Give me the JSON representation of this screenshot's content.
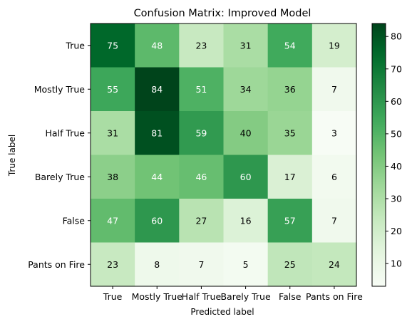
{
  "chart_data": {
    "type": "heatmap",
    "title": "Confusion Matrix: Improved Model",
    "xlabel": "Predicted label",
    "ylabel": "True label",
    "x_categories": [
      "True",
      "Mostly True",
      "Half True",
      "Barely True",
      "False",
      "Pants on Fire"
    ],
    "y_categories": [
      "True",
      "Mostly True",
      "Half True",
      "Barely True",
      "False",
      "Pants on Fire"
    ],
    "matrix": [
      [
        75,
        48,
        23,
        31,
        54,
        19
      ],
      [
        55,
        84,
        51,
        34,
        36,
        7
      ],
      [
        31,
        81,
        59,
        40,
        35,
        3
      ],
      [
        38,
        44,
        46,
        60,
        17,
        6
      ],
      [
        47,
        60,
        27,
        16,
        57,
        7
      ],
      [
        23,
        8,
        7,
        5,
        25,
        24
      ]
    ],
    "colorscale": "Greens",
    "colorbar_range": [
      3,
      84
    ],
    "colorbar_ticks": [
      10,
      20,
      30,
      40,
      50,
      60,
      70,
      80
    ],
    "grid": false
  }
}
